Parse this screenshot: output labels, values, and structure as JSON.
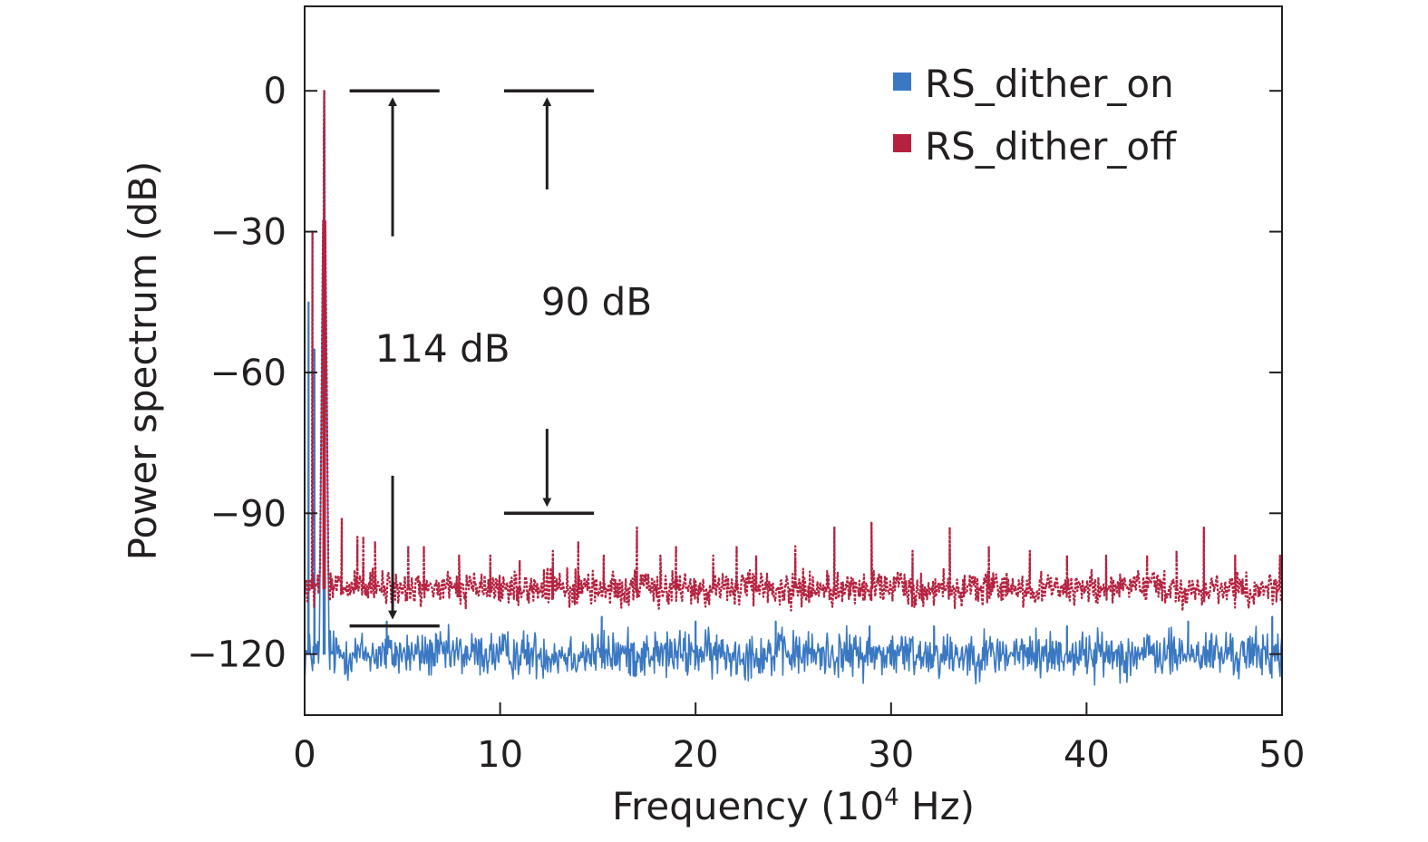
{
  "chart_data": {
    "type": "line",
    "title": "",
    "xlabel": "Frequency (10",
    "xlabel_sup": "4",
    "xlabel_tail": " Hz)",
    "ylabel": "Power spectrum (dB)",
    "xlim": [
      0,
      50
    ],
    "ylim": [
      -133,
      18
    ],
    "xticks": [
      0,
      10,
      20,
      30,
      40,
      50
    ],
    "xtick_labels": [
      "0",
      "10",
      "20",
      "30",
      "40",
      "50"
    ],
    "yticks": [
      0,
      -30,
      -60,
      -90,
      -120
    ],
    "ytick_labels": [
      "0",
      "−30",
      "−60",
      "−90",
      "−120"
    ],
    "grid": false,
    "legend_position": "top-right",
    "series": [
      {
        "name": "RS_dither_on",
        "color": "#3a78c2",
        "noise_floor": -120,
        "noise_amplitude": 3.5,
        "peaks": [
          {
            "x": 1.0,
            "y": 0
          },
          {
            "x": 0.2,
            "y": -45
          },
          {
            "x": 0.5,
            "y": -55
          },
          {
            "x": 1.3,
            "y": -115
          },
          {
            "x": 4.2,
            "y": -113
          },
          {
            "x": 15.2,
            "y": -112
          },
          {
            "x": 20.0,
            "y": -113
          },
          {
            "x": 24.1,
            "y": -113
          },
          {
            "x": 28.9,
            "y": -114
          },
          {
            "x": 32.2,
            "y": -114
          },
          {
            "x": 39.0,
            "y": -114
          },
          {
            "x": 45.2,
            "y": -113
          },
          {
            "x": 49.5,
            "y": -112
          }
        ]
      },
      {
        "name": "RS_dither_off",
        "color": "#b5223f",
        "noise_floor": -106,
        "noise_amplitude": 2.5,
        "peaks": [
          {
            "x": 1.0,
            "y": 0
          },
          {
            "x": 0.4,
            "y": -30
          },
          {
            "x": 1.9,
            "y": -91
          },
          {
            "x": 2.7,
            "y": -95
          },
          {
            "x": 3.0,
            "y": -95
          },
          {
            "x": 3.6,
            "y": -96
          },
          {
            "x": 4.5,
            "y": -94
          },
          {
            "x": 5.3,
            "y": -97
          },
          {
            "x": 6.1,
            "y": -97
          },
          {
            "x": 7.9,
            "y": -99
          },
          {
            "x": 9.5,
            "y": -99
          },
          {
            "x": 11.0,
            "y": -100
          },
          {
            "x": 12.7,
            "y": -98
          },
          {
            "x": 14.0,
            "y": -96
          },
          {
            "x": 15.3,
            "y": -99
          },
          {
            "x": 17.0,
            "y": -93
          },
          {
            "x": 18.2,
            "y": -99
          },
          {
            "x": 19.0,
            "y": -97
          },
          {
            "x": 20.9,
            "y": -99
          },
          {
            "x": 22.1,
            "y": -97
          },
          {
            "x": 23.1,
            "y": -99
          },
          {
            "x": 25.1,
            "y": -97
          },
          {
            "x": 27.1,
            "y": -93
          },
          {
            "x": 29.0,
            "y": -92
          },
          {
            "x": 31.1,
            "y": -98
          },
          {
            "x": 33.0,
            "y": -93
          },
          {
            "x": 35.0,
            "y": -97
          },
          {
            "x": 37.1,
            "y": -98
          },
          {
            "x": 39.0,
            "y": -99
          },
          {
            "x": 41.0,
            "y": -99
          },
          {
            "x": 43.1,
            "y": -99
          },
          {
            "x": 44.6,
            "y": -98
          },
          {
            "x": 46.0,
            "y": -93
          },
          {
            "x": 47.6,
            "y": -99
          },
          {
            "x": 49.9,
            "y": -99
          }
        ]
      }
    ],
    "annotations": [
      {
        "text": "114 dB",
        "x": 3.6,
        "y": -55,
        "bracket_top": 0,
        "bracket_bottom": -114,
        "arrow_x": 4.5,
        "line_x_range": [
          2.3,
          6.9
        ]
      },
      {
        "text": "90 dB",
        "x": 12.1,
        "y": -45,
        "bracket_top": 0,
        "bracket_bottom": -90,
        "arrow_x": 12.4,
        "line_x_range": [
          10.2,
          14.8
        ]
      }
    ]
  }
}
